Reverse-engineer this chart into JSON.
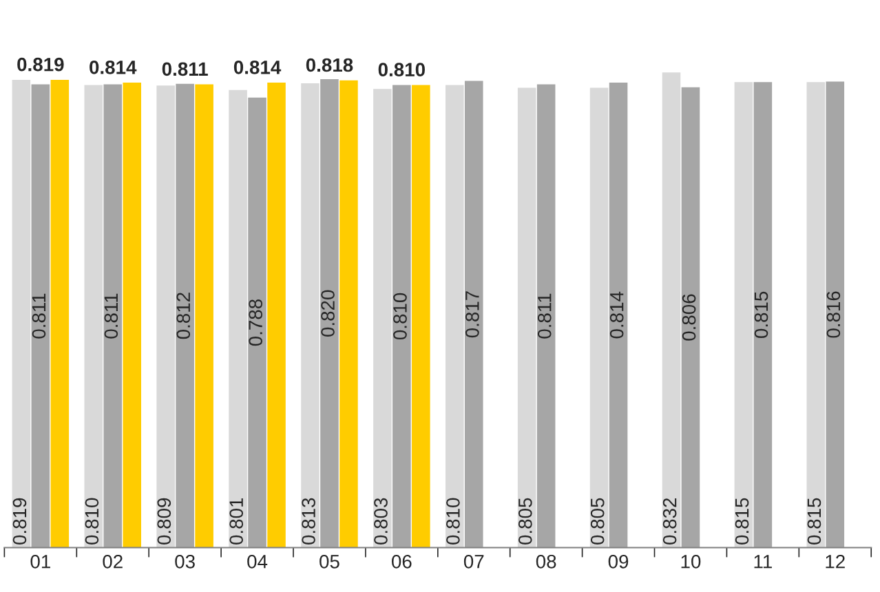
{
  "chart_data": {
    "type": "bar",
    "categories": [
      "01",
      "02",
      "03",
      "04",
      "05",
      "06",
      "07",
      "08",
      "09",
      "10",
      "11",
      "12"
    ],
    "tick_labels": "x",
    "grid": false,
    "legend": false,
    "series": [
      {
        "color": "#d9d9d9",
        "values": [
          0.819,
          0.81,
          0.809,
          0.801,
          0.813,
          0.803,
          0.81,
          0.805,
          0.805,
          0.832,
          0.815,
          0.815
        ],
        "value_labels": [
          "0.819",
          "0.810",
          "0.809",
          "0.801",
          "0.813",
          "0.803",
          "0.810",
          "0.805",
          "0.805",
          "0.832",
          "0.815",
          "0.815"
        ]
      },
      {
        "color": "#a6a6a6",
        "values": [
          0.811,
          0.811,
          0.812,
          0.788,
          0.82,
          0.81,
          0.817,
          0.811,
          0.814,
          0.806,
          0.815,
          0.816
        ],
        "value_labels": [
          "0.811",
          "0.811",
          "0.812",
          "0.788",
          "0.820",
          "0.810",
          "0.817",
          "0.811",
          "0.814",
          "0.806",
          "0.815",
          "0.816"
        ]
      },
      {
        "color": "#ffcc00",
        "values": [
          0.819,
          0.814,
          0.811,
          0.814,
          0.818,
          0.81,
          null,
          null,
          null,
          null,
          null,
          null
        ],
        "value_labels": [
          "0.819",
          "0.814",
          "0.811",
          "0.814",
          "0.818",
          "0.810",
          null,
          null,
          null,
          null,
          null,
          null
        ]
      }
    ]
  }
}
